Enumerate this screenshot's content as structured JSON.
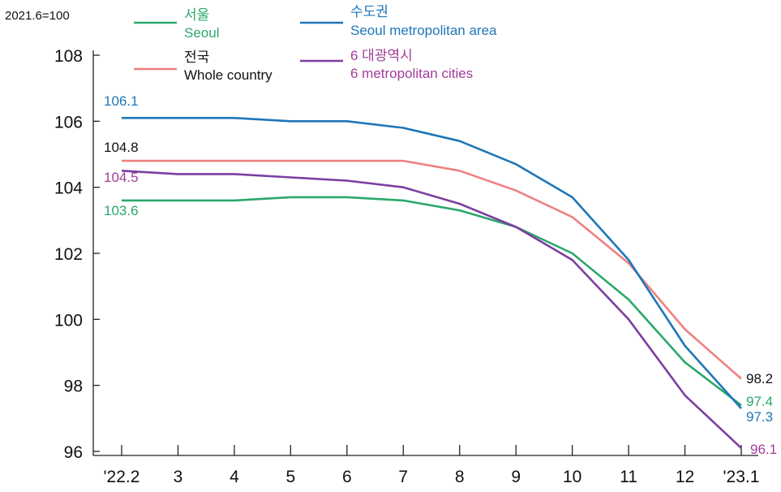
{
  "chart_data": {
    "type": "line",
    "unit_label": "2021.6=100",
    "title": "",
    "xlabel": "",
    "ylabel": "",
    "categories": [
      "'22.2",
      "3",
      "4",
      "5",
      "6",
      "7",
      "8",
      "9",
      "10",
      "11",
      "12",
      "'23.1"
    ],
    "ylim": [
      96,
      108
    ],
    "yticks": [
      96,
      98,
      100,
      102,
      104,
      106,
      108
    ],
    "grid": false,
    "legend_position": "top",
    "series": [
      {
        "name_ko": "서울",
        "name": "Seoul",
        "color": "#2aa86b",
        "values": [
          103.6,
          103.6,
          103.6,
          103.7,
          103.7,
          103.6,
          103.3,
          102.8,
          102.0,
          100.6,
          98.7,
          97.4
        ],
        "start_label": "103.6",
        "end_label": "97.4"
      },
      {
        "name_ko": "전국",
        "name": "Whole country",
        "color": "#f08080",
        "values": [
          104.8,
          104.8,
          104.8,
          104.8,
          104.8,
          104.8,
          104.5,
          103.9,
          103.1,
          101.7,
          99.7,
          98.2
        ],
        "start_label": "104.8",
        "end_label": "98.2"
      },
      {
        "name_ko": "수도권",
        "name": "Seoul metropolitan area",
        "color": "#1f76b8",
        "values": [
          106.1,
          106.1,
          106.1,
          106.0,
          106.0,
          105.8,
          105.4,
          104.7,
          103.7,
          101.8,
          99.2,
          97.3
        ],
        "start_label": "106.1",
        "end_label": "97.3"
      },
      {
        "name_ko": "6 대광역시",
        "name": "6 metropolitan cities",
        "color": "#7b3fa0",
        "values": [
          104.5,
          104.4,
          104.4,
          104.3,
          104.2,
          104.0,
          103.5,
          102.8,
          101.8,
          100.0,
          97.7,
          96.1
        ],
        "start_label": "104.5",
        "end_label": "96.1"
      }
    ]
  },
  "colors": {
    "seoul_text": "#2aa86b",
    "whole_country_text": "#111111",
    "metro_area_text": "#1f76b8",
    "six_cities_text": "#a23c9a"
  }
}
